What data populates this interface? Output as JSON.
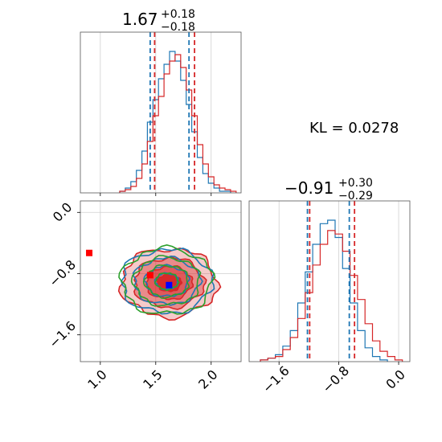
{
  "chart_data": [
    {
      "type": "histogram",
      "panel": "top-left marginal",
      "title": {
        "median": "1.67",
        "plus": "+0.18",
        "minus": "−0.18"
      },
      "xlim": [
        0.82,
        2.27
      ],
      "xticks": [
        1.0,
        1.5,
        2.0
      ],
      "series": [
        {
          "color": "#1f77b4",
          "quantiles": [
            1.45,
            1.8
          ],
          "centers": [
            1.2,
            1.25,
            1.3,
            1.35,
            1.4,
            1.45,
            1.5,
            1.55,
            1.6,
            1.65,
            1.7,
            1.75,
            1.8,
            1.85,
            1.9,
            1.95,
            2.0,
            2.05,
            2.1,
            2.15
          ],
          "counts": [
            1,
            3,
            7,
            14,
            26,
            44,
            58,
            71,
            80,
            88,
            82,
            70,
            55,
            38,
            22,
            12,
            6,
            3,
            1,
            1
          ]
        },
        {
          "color": "#d62728",
          "quantiles": [
            1.49,
            1.85
          ],
          "centers": [
            1.2,
            1.25,
            1.3,
            1.35,
            1.4,
            1.45,
            1.5,
            1.55,
            1.6,
            1.65,
            1.7,
            1.75,
            1.8,
            1.85,
            1.9,
            1.95,
            2.0,
            2.05,
            2.1,
            2.15,
            2.2
          ],
          "counts": [
            1,
            2,
            4,
            9,
            18,
            32,
            48,
            60,
            74,
            82,
            86,
            78,
            64,
            48,
            30,
            18,
            10,
            5,
            3,
            2,
            1
          ]
        }
      ]
    },
    {
      "type": "contour",
      "panel": "bottom-left joint",
      "xlim": [
        0.82,
        2.27
      ],
      "ylim": [
        -1.95,
        0.15
      ],
      "xticks": [
        1.0,
        1.5,
        2.0
      ],
      "yticks": [
        0.0,
        -0.8,
        -1.6
      ],
      "series": [
        {
          "color": "#d62728",
          "center": [
            1.62,
            -0.92
          ],
          "sigma": [
            0.18,
            0.3
          ],
          "filled": true
        },
        {
          "color": "#1f77b4",
          "center": [
            1.6,
            -0.9
          ],
          "sigma": [
            0.17,
            0.28
          ],
          "filled": false
        },
        {
          "color": "#2ca02c",
          "center": [
            1.6,
            -0.9
          ],
          "sigma": [
            0.17,
            0.29
          ],
          "filled": false
        }
      ],
      "markers": [
        {
          "color": "#ff0000",
          "x": 0.9,
          "y": -0.53
        },
        {
          "color": "#ff0000",
          "x": 1.45,
          "y": -0.82
        },
        {
          "color": "#0000ff",
          "x": 1.62,
          "y": -0.95
        }
      ]
    },
    {
      "type": "histogram",
      "panel": "bottom-right marginal",
      "title": {
        "median": "−0.91",
        "plus": "+0.30",
        "minus": "−0.29"
      },
      "xlim": [
        -2.0,
        0.15
      ],
      "xticks": [
        -1.6,
        -0.8,
        0.0
      ],
      "series": [
        {
          "color": "#1f77b4",
          "quantiles": [
            -1.22,
            -0.66
          ],
          "centers": [
            -1.8,
            -1.7,
            -1.6,
            -1.5,
            -1.4,
            -1.3,
            -1.2,
            -1.1,
            -1.0,
            -0.9,
            -0.8,
            -0.7,
            -0.6,
            -0.5,
            -0.4,
            -0.3,
            -0.2
          ],
          "counts": [
            1,
            2,
            4,
            9,
            18,
            34,
            52,
            68,
            80,
            82,
            72,
            54,
            34,
            18,
            8,
            3,
            1
          ]
        },
        {
          "color": "#d62728",
          "quantiles": [
            -1.19,
            -0.59
          ],
          "centers": [
            -1.8,
            -1.7,
            -1.6,
            -1.5,
            -1.4,
            -1.3,
            -1.2,
            -1.1,
            -1.0,
            -0.9,
            -0.8,
            -0.7,
            -0.6,
            -0.5,
            -0.4,
            -0.3,
            -0.2,
            -0.1,
            0.0
          ],
          "counts": [
            1,
            2,
            3,
            7,
            14,
            25,
            40,
            56,
            68,
            76,
            74,
            64,
            50,
            36,
            22,
            12,
            6,
            3,
            1
          ]
        }
      ]
    }
  ],
  "annotation": {
    "kl": "KL = 0.0278"
  }
}
